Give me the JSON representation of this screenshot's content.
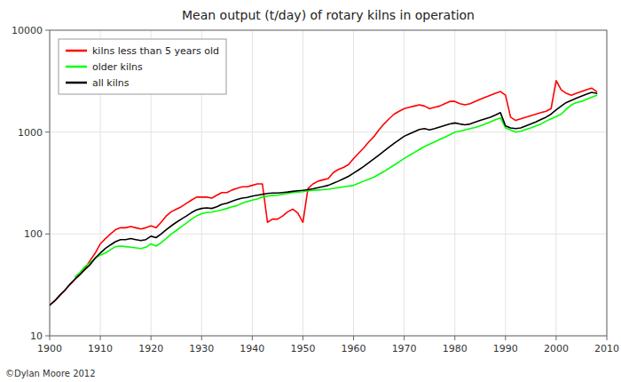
{
  "chart_data": {
    "type": "line",
    "title": "Mean output (t/day) of rotary kilns in operation",
    "annotations": [
      "©Dylan Moore 2012"
    ],
    "log": "y",
    "grid": true,
    "legend": "upper left",
    "xlim": [
      1900,
      2010
    ],
    "xticks": [
      1900,
      1910,
      1920,
      1930,
      1940,
      1950,
      1960,
      1970,
      1980,
      1990,
      2000,
      2010
    ],
    "ylim": [
      10,
      10000
    ],
    "yticks": [
      10,
      100,
      1000,
      10000
    ],
    "x": [
      1900,
      1901,
      1902,
      1903,
      1904,
      1905,
      1906,
      1907,
      1908,
      1909,
      1910,
      1911,
      1912,
      1913,
      1914,
      1915,
      1916,
      1917,
      1918,
      1919,
      1920,
      1921,
      1922,
      1923,
      1924,
      1925,
      1926,
      1927,
      1928,
      1929,
      1930,
      1931,
      1932,
      1933,
      1934,
      1935,
      1936,
      1937,
      1938,
      1939,
      1940,
      1941,
      1942,
      1943,
      1944,
      1945,
      1946,
      1947,
      1948,
      1949,
      1950,
      1951,
      1952,
      1953,
      1954,
      1955,
      1956,
      1957,
      1958,
      1959,
      1960,
      1961,
      1962,
      1963,
      1964,
      1965,
      1966,
      1967,
      1968,
      1969,
      1970,
      1971,
      1972,
      1973,
      1974,
      1975,
      1976,
      1977,
      1978,
      1979,
      1980,
      1981,
      1982,
      1983,
      1984,
      1985,
      1986,
      1987,
      1988,
      1989,
      1990,
      1991,
      1992,
      1993,
      1994,
      1995,
      1996,
      1997,
      1998,
      1999,
      2000,
      2001,
      2002,
      2003,
      2004,
      2005,
      2006,
      2007,
      2008
    ],
    "series": [
      {
        "name": "kilns less than 5 years old",
        "color": "red",
        "values": [
          20,
          22,
          25,
          28,
          32,
          36,
          40,
          46,
          55,
          65,
          80,
          90,
          100,
          110,
          115,
          115,
          118,
          115,
          112,
          115,
          120,
          115,
          130,
          150,
          165,
          175,
          185,
          200,
          215,
          230,
          230,
          230,
          225,
          240,
          255,
          255,
          270,
          280,
          290,
          290,
          300,
          310,
          310,
          130,
          140,
          140,
          150,
          165,
          175,
          160,
          130,
          280,
          310,
          330,
          340,
          350,
          400,
          430,
          450,
          480,
          550,
          620,
          700,
          800,
          900,
          1050,
          1200,
          1350,
          1500,
          1600,
          1700,
          1750,
          1800,
          1850,
          1800,
          1700,
          1750,
          1800,
          1900,
          2000,
          2000,
          1900,
          1850,
          1900,
          2000,
          2100,
          2200,
          2300,
          2400,
          2500,
          2300,
          1400,
          1300,
          1350,
          1400,
          1450,
          1500,
          1550,
          1600,
          1700,
          3200,
          2600,
          2400,
          2300,
          2400,
          2500,
          2600,
          2700,
          2500
        ]
      },
      {
        "name": "older kilns",
        "color": "lime",
        "values": [
          null,
          null,
          null,
          null,
          null,
          38,
          42,
          48,
          52,
          58,
          62,
          65,
          70,
          75,
          76,
          75,
          74,
          73,
          72,
          74,
          80,
          76,
          82,
          90,
          100,
          108,
          118,
          128,
          140,
          150,
          158,
          162,
          164,
          168,
          172,
          178,
          185,
          190,
          200,
          208,
          215,
          220,
          230,
          235,
          238,
          240,
          245,
          250,
          255,
          258,
          260,
          265,
          268,
          270,
          272,
          275,
          280,
          285,
          290,
          295,
          300,
          315,
          330,
          345,
          360,
          385,
          410,
          440,
          475,
          510,
          550,
          590,
          630,
          675,
          720,
          760,
          800,
          845,
          890,
          940,
          1000,
          1020,
          1050,
          1080,
          1110,
          1150,
          1200,
          1260,
          1320,
          1380,
          1100,
          1050,
          1000,
          1020,
          1060,
          1100,
          1150,
          1200,
          1280,
          1350,
          1420,
          1500,
          1680,
          1850,
          1950,
          2000,
          2100,
          2200,
          2300
        ]
      },
      {
        "name": "all kilns",
        "color": "black",
        "values": [
          20,
          22,
          25,
          28,
          32,
          36,
          40,
          45,
          50,
          58,
          65,
          72,
          78,
          84,
          88,
          88,
          90,
          88,
          86,
          88,
          95,
          92,
          100,
          110,
          120,
          130,
          140,
          150,
          162,
          172,
          178,
          180,
          178,
          185,
          195,
          200,
          210,
          218,
          225,
          228,
          235,
          240,
          245,
          250,
          252,
          252,
          255,
          258,
          262,
          265,
          268,
          272,
          278,
          285,
          292,
          300,
          315,
          330,
          348,
          368,
          395,
          425,
          460,
          500,
          545,
          595,
          650,
          710,
          775,
          840,
          910,
          960,
          1010,
          1060,
          1080,
          1050,
          1080,
          1120,
          1160,
          1200,
          1230,
          1200,
          1180,
          1200,
          1250,
          1300,
          1350,
          1400,
          1470,
          1550,
          1150,
          1100,
          1080,
          1100,
          1150,
          1200,
          1260,
          1330,
          1400,
          1500,
          1650,
          1800,
          1950,
          2050,
          2150,
          2250,
          2350,
          2450,
          2400
        ]
      }
    ]
  }
}
